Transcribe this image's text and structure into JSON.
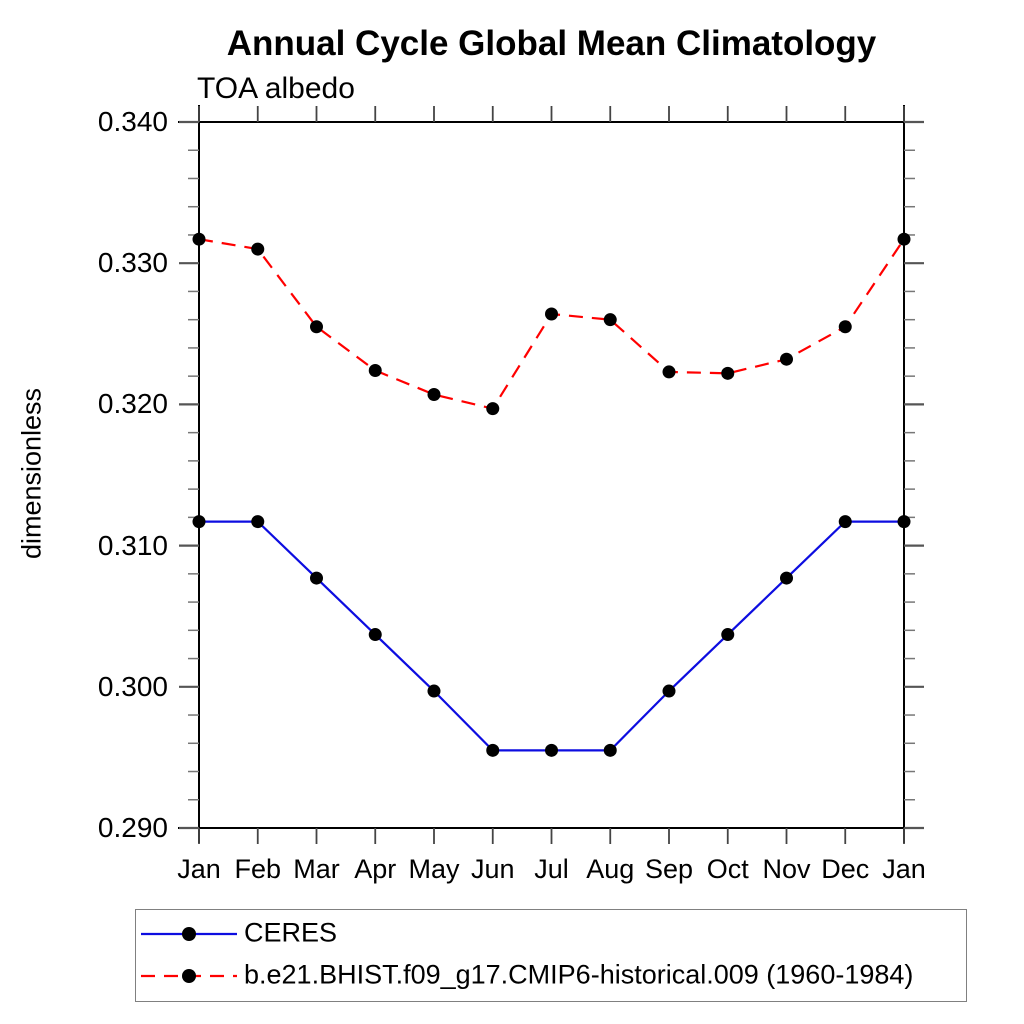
{
  "title": "Annual Cycle Global Mean Climatology",
  "subtitle": "TOA albedo",
  "chart_data": {
    "type": "line",
    "categories": [
      "Jan",
      "Feb",
      "Mar",
      "Apr",
      "May",
      "Jun",
      "Jul",
      "Aug",
      "Sep",
      "Oct",
      "Nov",
      "Dec",
      "Jan"
    ],
    "xlabel": "",
    "ylabel": "dimensionless",
    "ylim": [
      0.29,
      0.34
    ],
    "ytick_step": 0.01,
    "yminor_step": 0.002,
    "ytick_labels": [
      "0.290",
      "0.300",
      "0.310",
      "0.320",
      "0.330",
      "0.340"
    ],
    "grid": "off",
    "legend_position": "bottom-left-outside",
    "axis_color": "#000000",
    "tick_color": "#555555",
    "marker": "filled-circle",
    "marker_color": "#000000",
    "series": [
      {
        "name": "CERES",
        "color": "#0d0de0",
        "line_style": "solid",
        "values": [
          0.3117,
          0.3117,
          0.3077,
          0.3037,
          0.2997,
          0.2955,
          0.2955,
          0.2955,
          0.2997,
          0.3037,
          0.3077,
          0.3117,
          0.3117
        ]
      },
      {
        "name": "b.e21.BHIST.f09_g17.CMIP6-historical.009 (1960-1984)",
        "color": "#ff0000",
        "line_style": "dashed",
        "values": [
          0.3317,
          0.331,
          0.3255,
          0.3224,
          0.3207,
          0.3197,
          0.3264,
          0.326,
          0.3223,
          0.3222,
          0.3232,
          0.3255,
          0.3317
        ]
      }
    ]
  }
}
